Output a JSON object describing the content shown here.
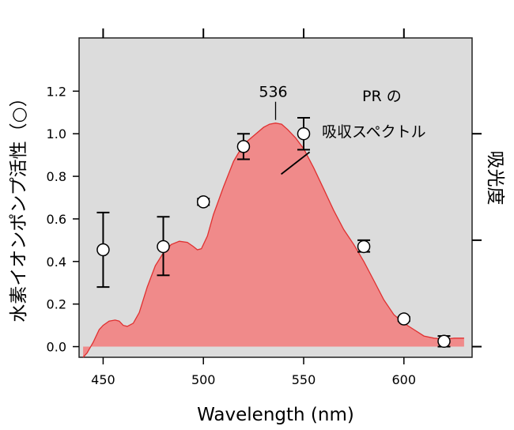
{
  "chart_data": {
    "type": "area",
    "xlabel": "Wavelength (nm)",
    "ylabel": "水素イオンポンプ活性（○）",
    "ylabel_right": "吸光度",
    "xlim": [
      438,
      634
    ],
    "ylim": [
      -0.05,
      1.45
    ],
    "x_ticks": [
      450,
      500,
      550,
      600
    ],
    "x_tick_labels": [
      "450",
      "500",
      "550",
      "600"
    ],
    "y_ticks": [
      0.0,
      0.2,
      0.4,
      0.6,
      0.8,
      1.0,
      1.2
    ],
    "y_tick_labels": [
      "0.0",
      "0.2",
      "0.4",
      "0.6",
      "0.8",
      "1.0",
      "1.2"
    ],
    "right_ticks": [
      0.0,
      0.5,
      1.0
    ],
    "top_ticks": [
      450,
      500,
      550,
      600
    ],
    "grid": false,
    "plot_background": "#dcdcdc",
    "spectrum_fill_color": "#f08a8a",
    "spectrum_line_color": "#e03030",
    "series": [
      {
        "kind": "area",
        "x": [
          440,
          442,
          445,
          448,
          450,
          453,
          456,
          458,
          460,
          462,
          465,
          468,
          472,
          476,
          480,
          484,
          488,
          492,
          495,
          497,
          499,
          502,
          505,
          510,
          515,
          520,
          525,
          530,
          533,
          536,
          539,
          542,
          546,
          550,
          555,
          560,
          565,
          570,
          575,
          580,
          585,
          590,
          595,
          600,
          605,
          610,
          615,
          620,
          625,
          630
        ],
        "y": [
          -0.05,
          -0.03,
          0.02,
          0.08,
          0.1,
          0.12,
          0.125,
          0.12,
          0.1,
          0.095,
          0.11,
          0.16,
          0.28,
          0.38,
          0.44,
          0.48,
          0.495,
          0.49,
          0.47,
          0.455,
          0.46,
          0.52,
          0.62,
          0.75,
          0.87,
          0.95,
          0.99,
          1.03,
          1.045,
          1.05,
          1.045,
          1.02,
          0.98,
          0.93,
          0.84,
          0.74,
          0.64,
          0.55,
          0.48,
          0.4,
          0.31,
          0.22,
          0.15,
          0.11,
          0.08,
          0.05,
          0.04,
          0.035,
          0.04,
          0.04
        ]
      },
      {
        "kind": "scatter",
        "marker": "open-circle",
        "x": [
          450,
          480,
          500,
          520,
          550,
          580,
          600,
          620
        ],
        "y": [
          0.455,
          0.47,
          0.68,
          0.94,
          1.0,
          0.47,
          0.13,
          0.025
        ],
        "err_low": [
          0.28,
          0.335,
          0.665,
          0.88,
          0.925,
          0.445,
          0.12,
          0.0
        ],
        "err_high": [
          0.63,
          0.61,
          0.695,
          1.0,
          1.075,
          0.5,
          0.14,
          0.05
        ]
      }
    ],
    "annotations": {
      "peak_label": "536",
      "peak_x": 536,
      "peak_y": 1.05,
      "spectrum_label_line1": "PR の",
      "spectrum_label_line2": "吸収スペクトル",
      "spectrum_pointer_x": 538,
      "spectrum_pointer_y": 0.81
    }
  }
}
